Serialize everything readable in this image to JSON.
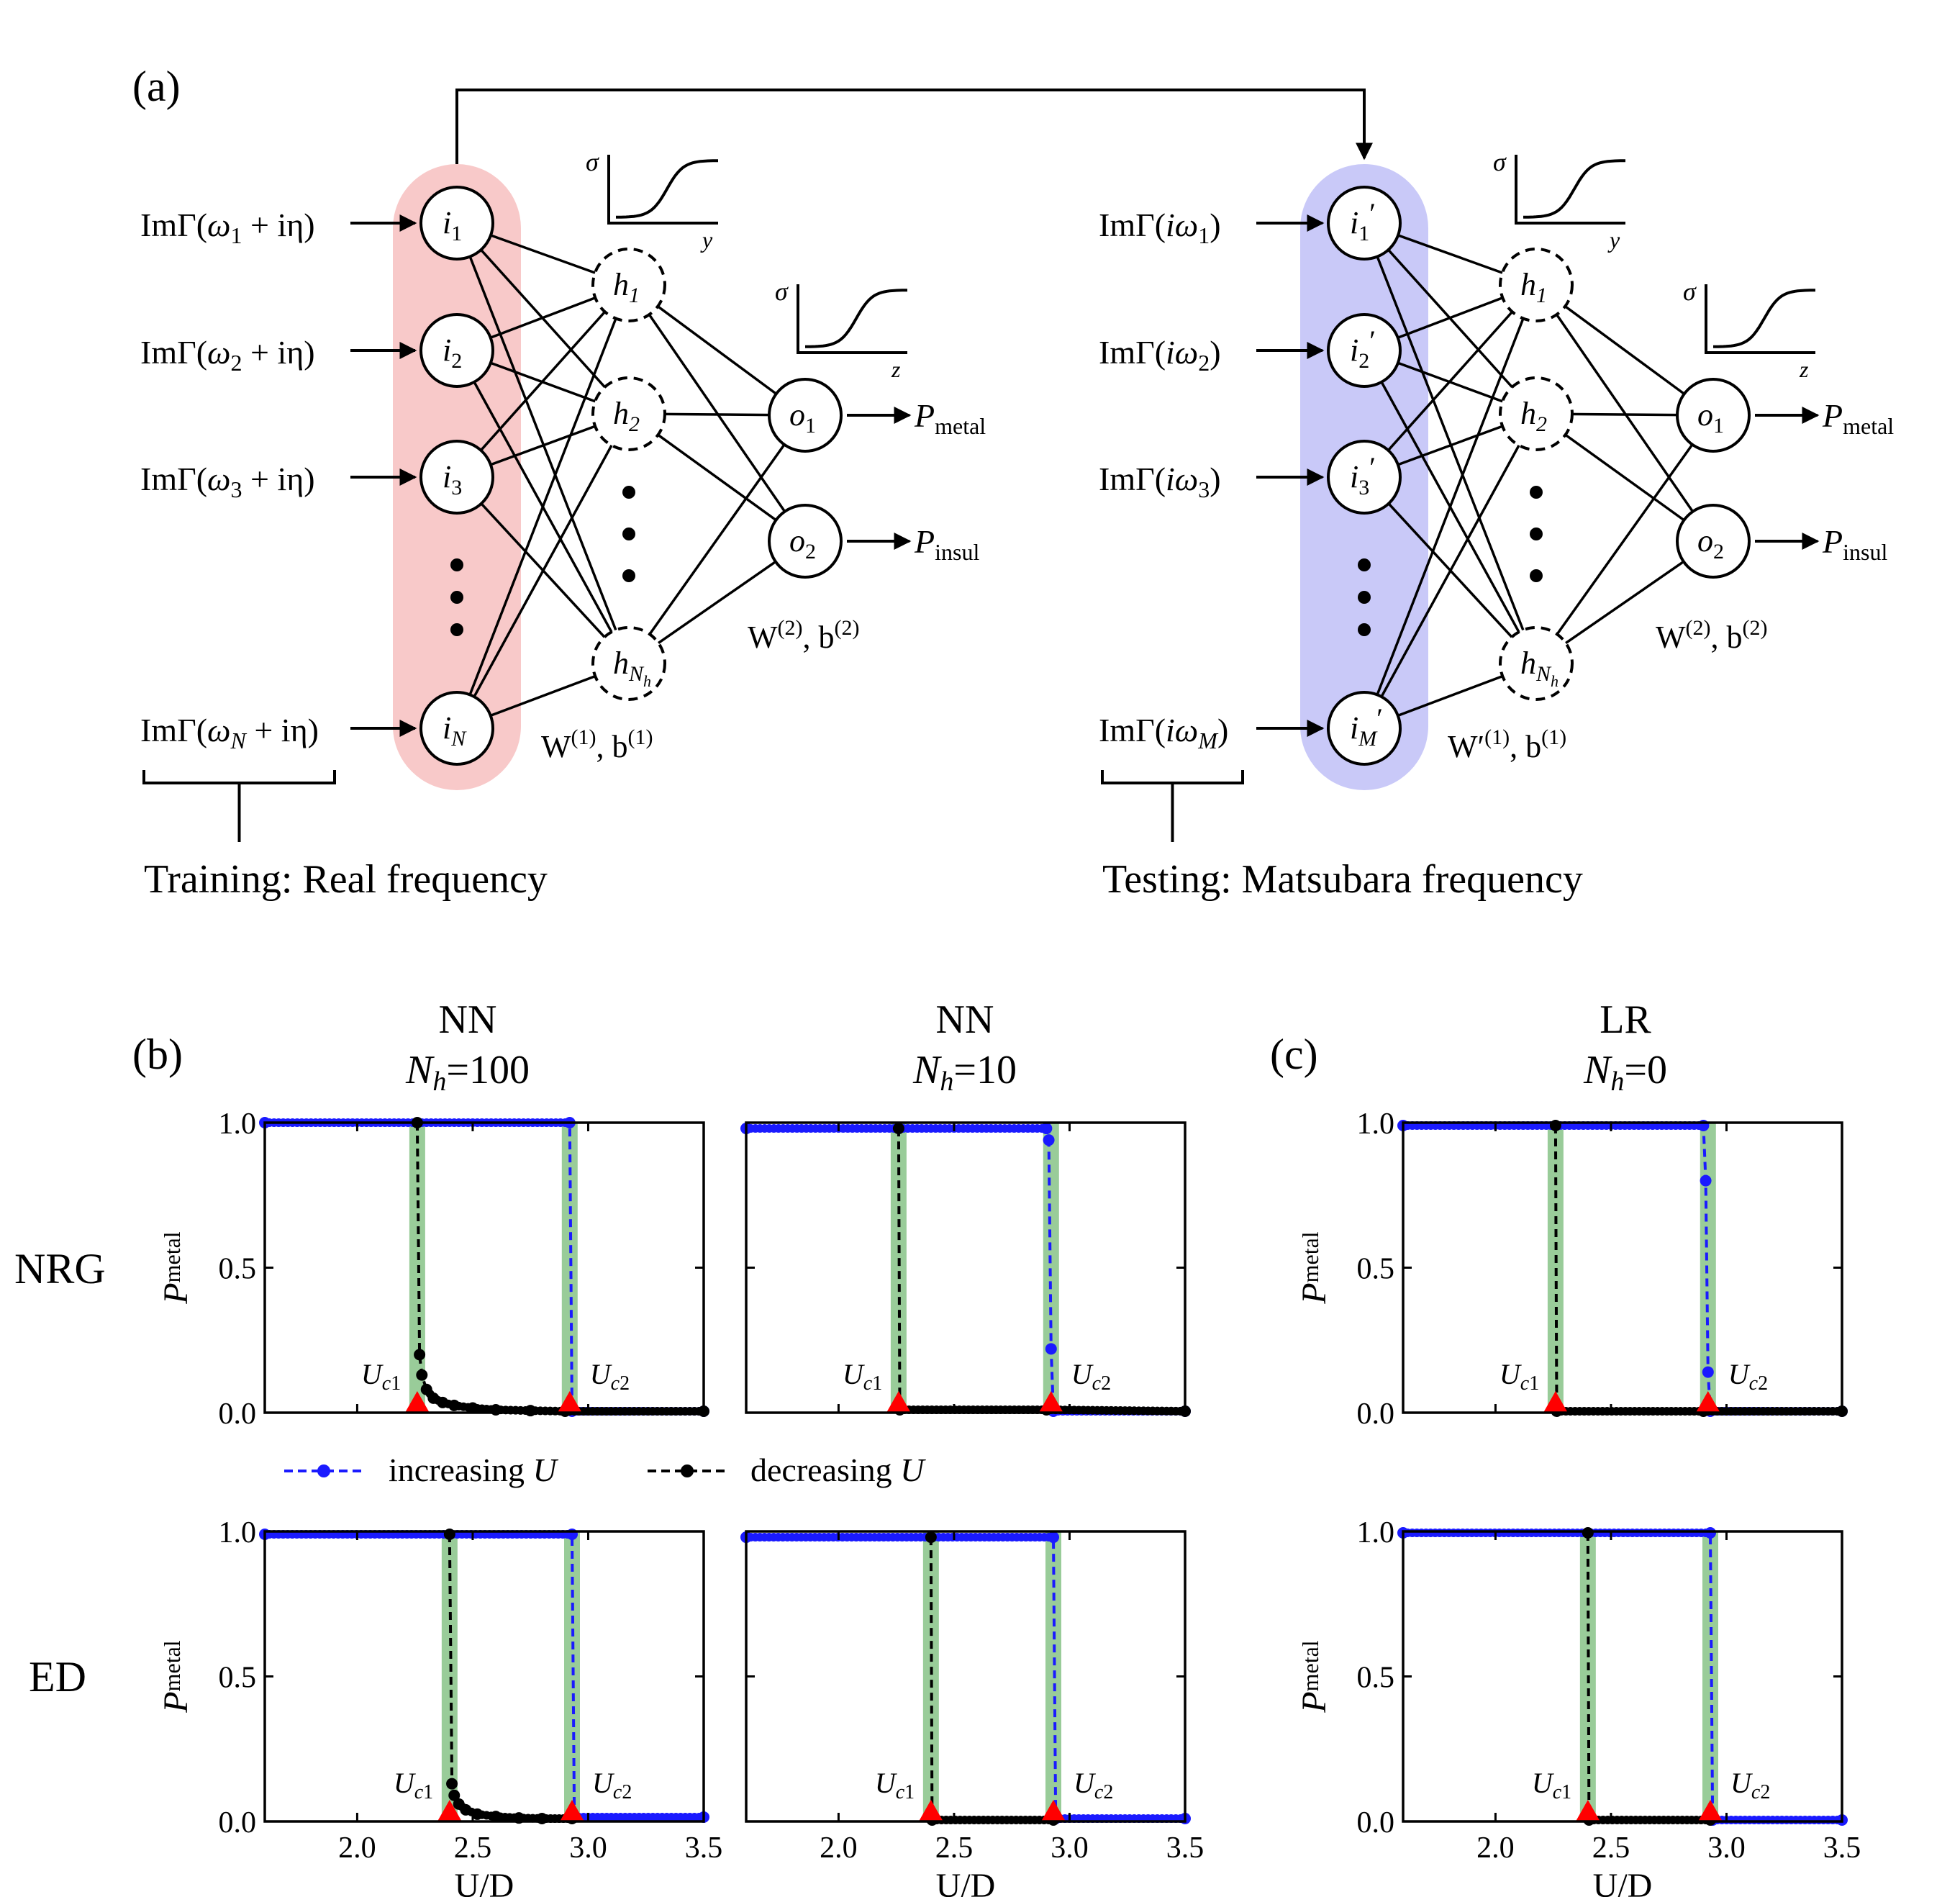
{
  "panel_labels": {
    "a": "(a)",
    "b": "(b)",
    "c": "(c)"
  },
  "network": {
    "train_inputs": [
      {
        "pre": "ImΓ(",
        "sym": "ω",
        "sub": "1",
        "post": " + iη)"
      },
      {
        "pre": "ImΓ(",
        "sym": "ω",
        "sub": "2",
        "post": " + iη)"
      },
      {
        "pre": "ImΓ(",
        "sym": "ω",
        "sub": "3",
        "post": " + iη)"
      },
      {
        "pre": "ImΓ(",
        "sym": "ω",
        "sub": "N",
        "post": " + iη)"
      }
    ],
    "test_inputs": [
      {
        "pre": "ImΓ(",
        "sym": "iω",
        "sub": "1",
        "post": ")"
      },
      {
        "pre": "ImΓ(",
        "sym": "iω",
        "sub": "2",
        "post": ")"
      },
      {
        "pre": "ImΓ(",
        "sym": "iω",
        "sub": "3",
        "post": ")"
      },
      {
        "pre": "ImΓ(",
        "sym": "iω",
        "sub": "M",
        "post": ")"
      }
    ],
    "train_input_nodes": [
      {
        "b": "i",
        "s": "1"
      },
      {
        "b": "i",
        "s": "2"
      },
      {
        "b": "i",
        "s": "3"
      },
      {
        "b": "i",
        "s": "N"
      }
    ],
    "test_input_nodes": [
      {
        "b": "i",
        "s": "1",
        "p": "′"
      },
      {
        "b": "i",
        "s": "2",
        "p": "′"
      },
      {
        "b": "i",
        "s": "3",
        "p": "′"
      },
      {
        "b": "i",
        "s": "M",
        "p": "′"
      }
    ],
    "hidden_nodes": [
      {
        "b": "h",
        "s": "1"
      },
      {
        "b": "h",
        "s": "2"
      },
      {
        "b": "h",
        "s": "N",
        "ss": "h"
      }
    ],
    "output_nodes": [
      {
        "b": "o",
        "s": "1"
      },
      {
        "b": "o",
        "s": "2"
      }
    ],
    "outputs": [
      {
        "b": "P",
        "s": "metal"
      },
      {
        "b": "P",
        "s": "insul"
      }
    ],
    "sigma_label": "σ",
    "sigma_axis_hidden": "y",
    "sigma_axis_output": "z",
    "weights_train_hidden": "W(1), b(1)",
    "weights_test_hidden": "W′(1), b(1)",
    "weights_output": "W(2), b(2)",
    "train_caption": "Training: Real frequency",
    "test_caption": "Testing: Matsubara frequency"
  },
  "column_titles": [
    {
      "line1": "NN",
      "line2": "N",
      "sub": "h",
      "val": "=100"
    },
    {
      "line1": "NN",
      "line2": "N",
      "sub": "h",
      "val": "=10"
    },
    {
      "line1": "LR",
      "line2": "N",
      "sub": "h",
      "val": "=0"
    }
  ],
  "row_labels": [
    "NRG",
    "ED"
  ],
  "legend": {
    "increasing": "increasing U",
    "decreasing": "decreasing U"
  },
  "colors": {
    "increasing": "#1a1aff",
    "decreasing": "#000000",
    "shade": "#99cc99",
    "marker": "#ff0000",
    "train_band": "#f8c9c9",
    "test_band": "#c9c9f8"
  },
  "chart_data": [
    {
      "type": "line",
      "row": "NRG",
      "col": "NN Nh=100",
      "xlim": [
        1.6,
        3.5
      ],
      "ylim": [
        0,
        1
      ],
      "xticks": [
        "2.0",
        "2.5",
        "3.0",
        "3.5"
      ],
      "yticks": [
        "0.0",
        "0.5",
        "1.0"
      ],
      "ylabel": "P_metal",
      "xlabel": "",
      "uc1": {
        "x": 2.26,
        "label": "U_c1"
      },
      "uc2": {
        "x": 2.92,
        "label": "U_c2"
      },
      "series": [
        {
          "name": "increasing U",
          "x": [
            1.6,
            2.92,
            2.93,
            3.5
          ],
          "y": [
            1.0,
            1.0,
            0.005,
            0.005
          ]
        },
        {
          "name": "decreasing U",
          "x": [
            2.26,
            2.27,
            2.28,
            2.3,
            2.33,
            2.37,
            2.42,
            2.5,
            2.6,
            2.75,
            2.9,
            3.5
          ],
          "y": [
            1.0,
            0.2,
            0.13,
            0.08,
            0.05,
            0.035,
            0.025,
            0.016,
            0.01,
            0.007,
            0.005,
            0.005
          ]
        }
      ]
    },
    {
      "type": "line",
      "row": "NRG",
      "col": "NN Nh=10",
      "xlim": [
        1.6,
        3.5
      ],
      "ylim": [
        0,
        1
      ],
      "xticks": [
        "2.0",
        "2.5",
        "3.0",
        "3.5"
      ],
      "yticks": [
        "0.0",
        "0.5",
        "1.0"
      ],
      "ylabel": "",
      "xlabel": "",
      "uc1": {
        "x": 2.26,
        "label": "U_c1"
      },
      "uc2": {
        "x": 2.92,
        "label": "U_c2"
      },
      "series": [
        {
          "name": "increasing U",
          "x": [
            1.6,
            2.9,
            2.91,
            2.92,
            2.93,
            3.5
          ],
          "y": [
            0.98,
            0.98,
            0.94,
            0.22,
            0.005,
            0.005
          ]
        },
        {
          "name": "decreasing U",
          "x": [
            2.26,
            2.265,
            2.9,
            3.5
          ],
          "y": [
            0.98,
            0.01,
            0.01,
            0.005
          ]
        }
      ]
    },
    {
      "type": "line",
      "row": "NRG",
      "col": "LR Nh=0",
      "xlim": [
        1.6,
        3.5
      ],
      "ylim": [
        0,
        1
      ],
      "xticks": [
        "2.0",
        "2.5",
        "3.0",
        "3.5"
      ],
      "yticks": [
        "0.0",
        "0.5",
        "1.0"
      ],
      "ylabel": "P_metal",
      "xlabel": "",
      "uc1": {
        "x": 2.26,
        "label": "U_c1"
      },
      "uc2": {
        "x": 2.92,
        "label": "U_c2"
      },
      "series": [
        {
          "name": "increasing U",
          "x": [
            1.6,
            2.9,
            2.91,
            2.92,
            2.93,
            3.5
          ],
          "y": [
            0.99,
            0.99,
            0.8,
            0.14,
            0.005,
            0.005
          ]
        },
        {
          "name": "decreasing U",
          "x": [
            2.26,
            2.265,
            2.9,
            3.5
          ],
          "y": [
            0.99,
            0.005,
            0.005,
            0.005
          ]
        }
      ]
    },
    {
      "type": "line",
      "row": "ED",
      "col": "NN Nh=100",
      "xlim": [
        1.6,
        3.5
      ],
      "ylim": [
        0,
        1
      ],
      "xticks": [
        "2.0",
        "2.5",
        "3.0",
        "3.5"
      ],
      "yticks": [
        "0.0",
        "0.5",
        "1.0"
      ],
      "ylabel": "P_metal",
      "xlabel": "U/D",
      "uc1": {
        "x": 2.4,
        "label": "U_c1"
      },
      "uc2": {
        "x": 2.93,
        "label": "U_c2"
      },
      "series": [
        {
          "name": "increasing U",
          "x": [
            1.6,
            2.93,
            2.94,
            3.5
          ],
          "y": [
            0.99,
            0.99,
            0.015,
            0.015
          ]
        },
        {
          "name": "decreasing U",
          "x": [
            2.4,
            2.41,
            2.42,
            2.44,
            2.47,
            2.52,
            2.6,
            2.7,
            2.8,
            2.93
          ],
          "y": [
            0.99,
            0.13,
            0.09,
            0.06,
            0.04,
            0.025,
            0.017,
            0.012,
            0.01,
            0.01
          ]
        }
      ]
    },
    {
      "type": "line",
      "row": "ED",
      "col": "NN Nh=10",
      "xlim": [
        1.6,
        3.5
      ],
      "ylim": [
        0,
        1
      ],
      "xticks": [
        "2.0",
        "2.5",
        "3.0",
        "3.5"
      ],
      "yticks": [
        "0.0",
        "0.5",
        "1.0"
      ],
      "ylabel": "",
      "xlabel": "U/D",
      "uc1": {
        "x": 2.4,
        "label": "U_c1"
      },
      "uc2": {
        "x": 2.93,
        "label": "U_c2"
      },
      "series": [
        {
          "name": "increasing U",
          "x": [
            1.6,
            2.93,
            2.94,
            3.5
          ],
          "y": [
            0.98,
            0.98,
            0.01,
            0.01
          ]
        },
        {
          "name": "decreasing U",
          "x": [
            2.4,
            2.405,
            2.93
          ],
          "y": [
            0.98,
            0.005,
            0.005
          ]
        }
      ]
    },
    {
      "type": "line",
      "row": "ED",
      "col": "LR Nh=0",
      "xlim": [
        1.6,
        3.5
      ],
      "ylim": [
        0,
        1
      ],
      "xticks": [
        "2.0",
        "2.5",
        "3.0",
        "3.5"
      ],
      "yticks": [
        "0.0",
        "0.5",
        "1.0"
      ],
      "ylabel": "P_metal",
      "xlabel": "U/D",
      "uc1": {
        "x": 2.4,
        "label": "U_c1"
      },
      "uc2": {
        "x": 2.93,
        "label": "U_c2"
      },
      "series": [
        {
          "name": "increasing U",
          "x": [
            1.6,
            2.93,
            2.94,
            3.5
          ],
          "y": [
            0.995,
            0.995,
            0.005,
            0.005
          ]
        },
        {
          "name": "decreasing U",
          "x": [
            2.4,
            2.405,
            2.93
          ],
          "y": [
            0.995,
            0.005,
            0.005
          ]
        }
      ]
    }
  ]
}
